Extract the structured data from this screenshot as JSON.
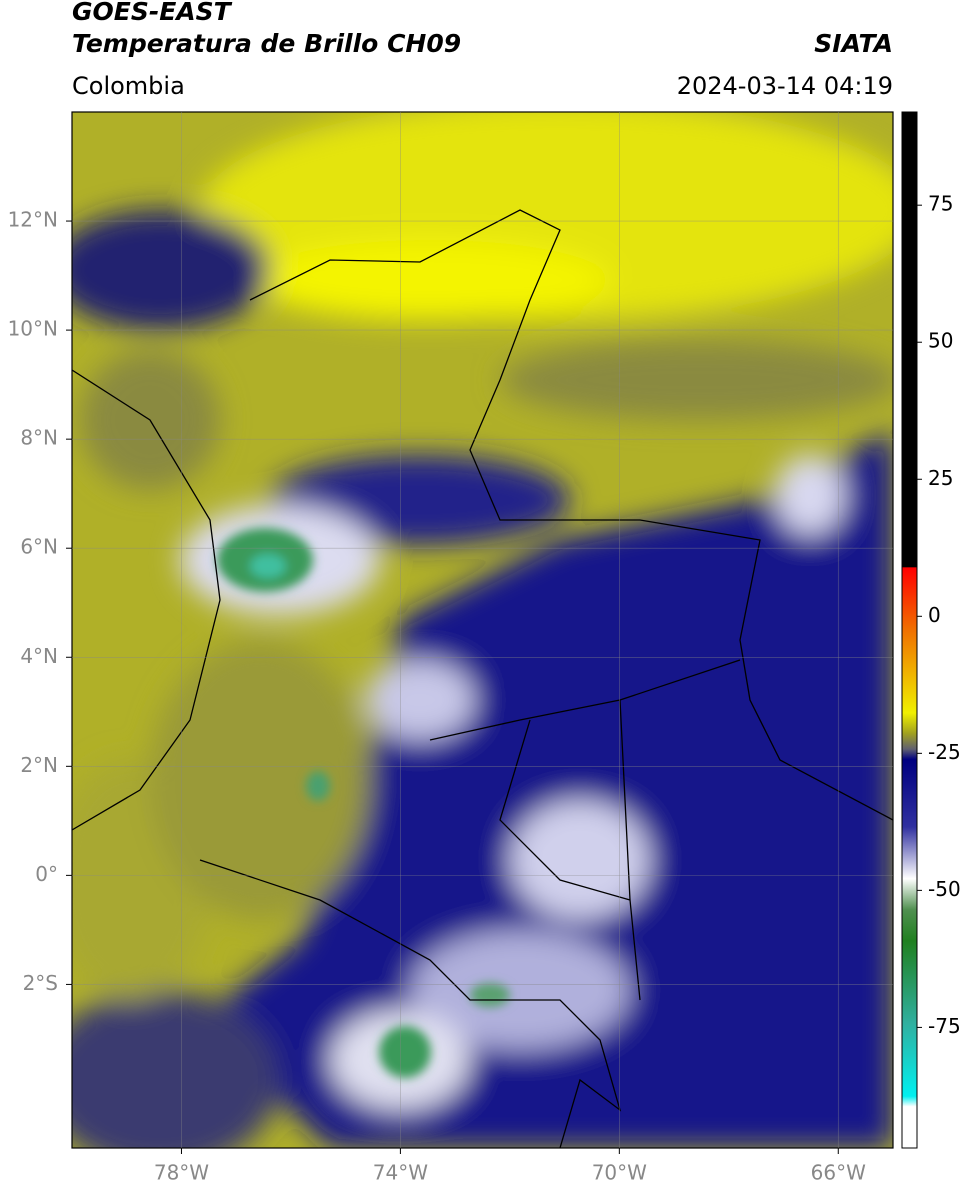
{
  "header": {
    "title": "GOES-EAST",
    "subtitle": "Temperatura de Brillo CH09",
    "source": "SIATA",
    "region": "Colombia",
    "timestamp": "2024-03-14 04:19"
  },
  "map": {
    "xlim": [
      -80,
      -65
    ],
    "ylim": [
      -5,
      14
    ],
    "xticks": [
      {
        "value": -78,
        "label": "78°W"
      },
      {
        "value": -74,
        "label": "74°W"
      },
      {
        "value": -70,
        "label": "70°W"
      },
      {
        "value": -66,
        "label": "66°W"
      }
    ],
    "yticks": [
      {
        "value": 12,
        "label": "12°N"
      },
      {
        "value": 10,
        "label": "10°N"
      },
      {
        "value": 8,
        "label": "8°N"
      },
      {
        "value": 6,
        "label": "6°N"
      },
      {
        "value": 4,
        "label": "4°N"
      },
      {
        "value": 2,
        "label": "2°N"
      },
      {
        "value": 0,
        "label": "0°"
      },
      {
        "value": -2,
        "label": "2°S"
      }
    ],
    "grid": true
  },
  "colorbar": {
    "lim": [
      -97,
      92
    ],
    "ticks": [
      75,
      50,
      25,
      0,
      -25,
      -50,
      -75
    ]
  }
}
